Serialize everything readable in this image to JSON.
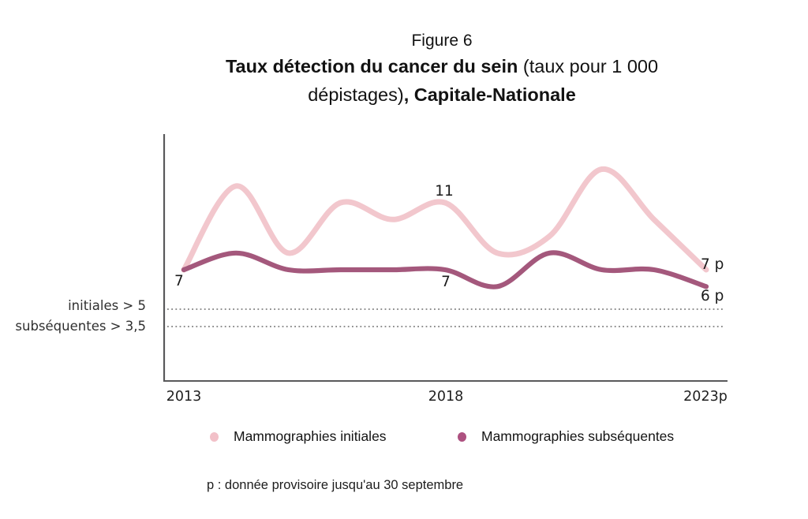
{
  "figure": {
    "label": "Figure 6",
    "title_bold_1": "Taux détection du cancer du sein",
    "title_regular_1": " (taux pour 1 000",
    "title_regular_2": "dépistages)",
    "title_bold_2": ", Capitale-Nationale"
  },
  "axis": {
    "x_ticks": [
      "2013",
      "2018",
      "2023p"
    ]
  },
  "reference_lines": [
    {
      "label": "initiales > 5",
      "value": 5
    },
    {
      "label": "subséquentes > 3,5",
      "value": 3.5
    }
  ],
  "annotations": {
    "initiales_2013": "7",
    "initiales_2018": "11",
    "subsequentes_2018": "7",
    "initiales_2023": "7 p",
    "subsequentes_2023": "6 p"
  },
  "legend": [
    {
      "label": "Mammographies initiales",
      "color": "#f2c0c8"
    },
    {
      "label": "Mammographies subséquentes",
      "color": "#ad5180"
    }
  ],
  "footnote": "p : donnée provisoire jusqu'au 30 septembre",
  "colors": {
    "initiales_line": "#f2c7cd",
    "subsequentes_line": "#a4587c",
    "axis": "#59595b",
    "dotted": "#8f8f8f"
  },
  "chart_data": {
    "type": "line",
    "figure_label": "Figure 6",
    "title": "Taux détection du cancer du sein (taux pour 1 000 dépistages), Capitale-Nationale",
    "x": [
      2013,
      2014,
      2015,
      2016,
      2017,
      2018,
      2019,
      2020,
      2021,
      2022,
      2023
    ],
    "x_tick_labels": [
      "2013",
      "2018",
      "2023p"
    ],
    "ylabel": "taux pour 1 000 dépistages",
    "grid": false,
    "legend_position": "bottom",
    "series": [
      {
        "name": "Mammographies initiales",
        "color": "#f2c7cd",
        "values": [
          7,
          12,
          8,
          11,
          10,
          11,
          8,
          9,
          13,
          10,
          7
        ],
        "labeled_points": {
          "2013": "7",
          "2018": "11",
          "2023": "7 p"
        }
      },
      {
        "name": "Mammographies subséquentes",
        "color": "#a4587c",
        "values": [
          7,
          8,
          7,
          7,
          7,
          7,
          6,
          8,
          7,
          7,
          6
        ],
        "labeled_points": {
          "2018": "7",
          "2023": "6 p"
        }
      }
    ],
    "reference_lines": [
      {
        "label": "initiales > 5",
        "value": 5
      },
      {
        "label": "subséquentes > 3,5",
        "value": 3.5
      }
    ],
    "footnote": "p : donnée provisoire jusqu'au 30 septembre"
  }
}
